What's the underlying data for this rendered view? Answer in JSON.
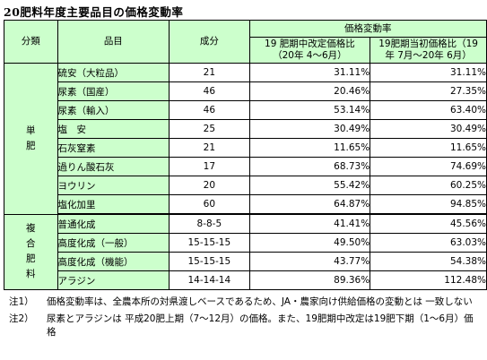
{
  "title": "20肥料年度主要品目の価格変動率",
  "headers": {
    "category": "分類",
    "item": "品目",
    "composition": "成分",
    "change_rate": "価格変動率",
    "col_mid_1": "19 肥期中改定価格比",
    "col_mid_2": "（20年 4～6月）",
    "col_start_1": "19肥期当初価格比（19",
    "col_start_2": "年 7月～20年 6月）"
  },
  "groups": {
    "single": "単\n肥",
    "compound": "複\n合\n肥\n料"
  },
  "rows": [
    {
      "item": "硫安（大粒品）",
      "composition": "21",
      "mid": "31.11%",
      "start": "31.11%"
    },
    {
      "item": "尿素（国産）",
      "composition": "46",
      "mid": "20.46%",
      "start": "27.35%"
    },
    {
      "item": "尿素（輸入）",
      "composition": "46",
      "mid": "53.14%",
      "start": "63.40%"
    },
    {
      "item": "塩　安",
      "composition": "25",
      "mid": "30.49%",
      "start": "30.49%"
    },
    {
      "item": "石灰窒素",
      "composition": "21",
      "mid": "11.65%",
      "start": "11.65%"
    },
    {
      "item": "過りん酸石灰",
      "composition": "17",
      "mid": "68.73%",
      "start": "74.69%"
    },
    {
      "item": "ヨウリン",
      "composition": "20",
      "mid": "55.42%",
      "start": "60.25%"
    },
    {
      "item": "塩化加里",
      "composition": "60",
      "mid": "64.87%",
      "start": "94.85%"
    },
    {
      "item": "普通化成",
      "composition": "8-8-5",
      "mid": "41.41%",
      "start": "45.56%"
    },
    {
      "item": "高度化成（一般）",
      "composition": "15-15-15",
      "mid": "49.50%",
      "start": "63.03%"
    },
    {
      "item": "高度化成（機能）",
      "composition": "15-15-15",
      "mid": "43.77%",
      "start": "54.38%"
    },
    {
      "item": "アラジン",
      "composition": "14-14-14",
      "mid": "89.36%",
      "start": "112.48%"
    }
  ],
  "notes": [
    {
      "label": "注1）",
      "text": "価格変動率は、全農本所の対県渡しベースであるため、JA・農家向け供給価格の変動とは 一致しない"
    },
    {
      "label": "注2）",
      "text": "尿素とアラジンは 平成20肥上期（7～12月）の価格。また、19肥期中改定は19肥下期（1～6月）価格"
    }
  ]
}
